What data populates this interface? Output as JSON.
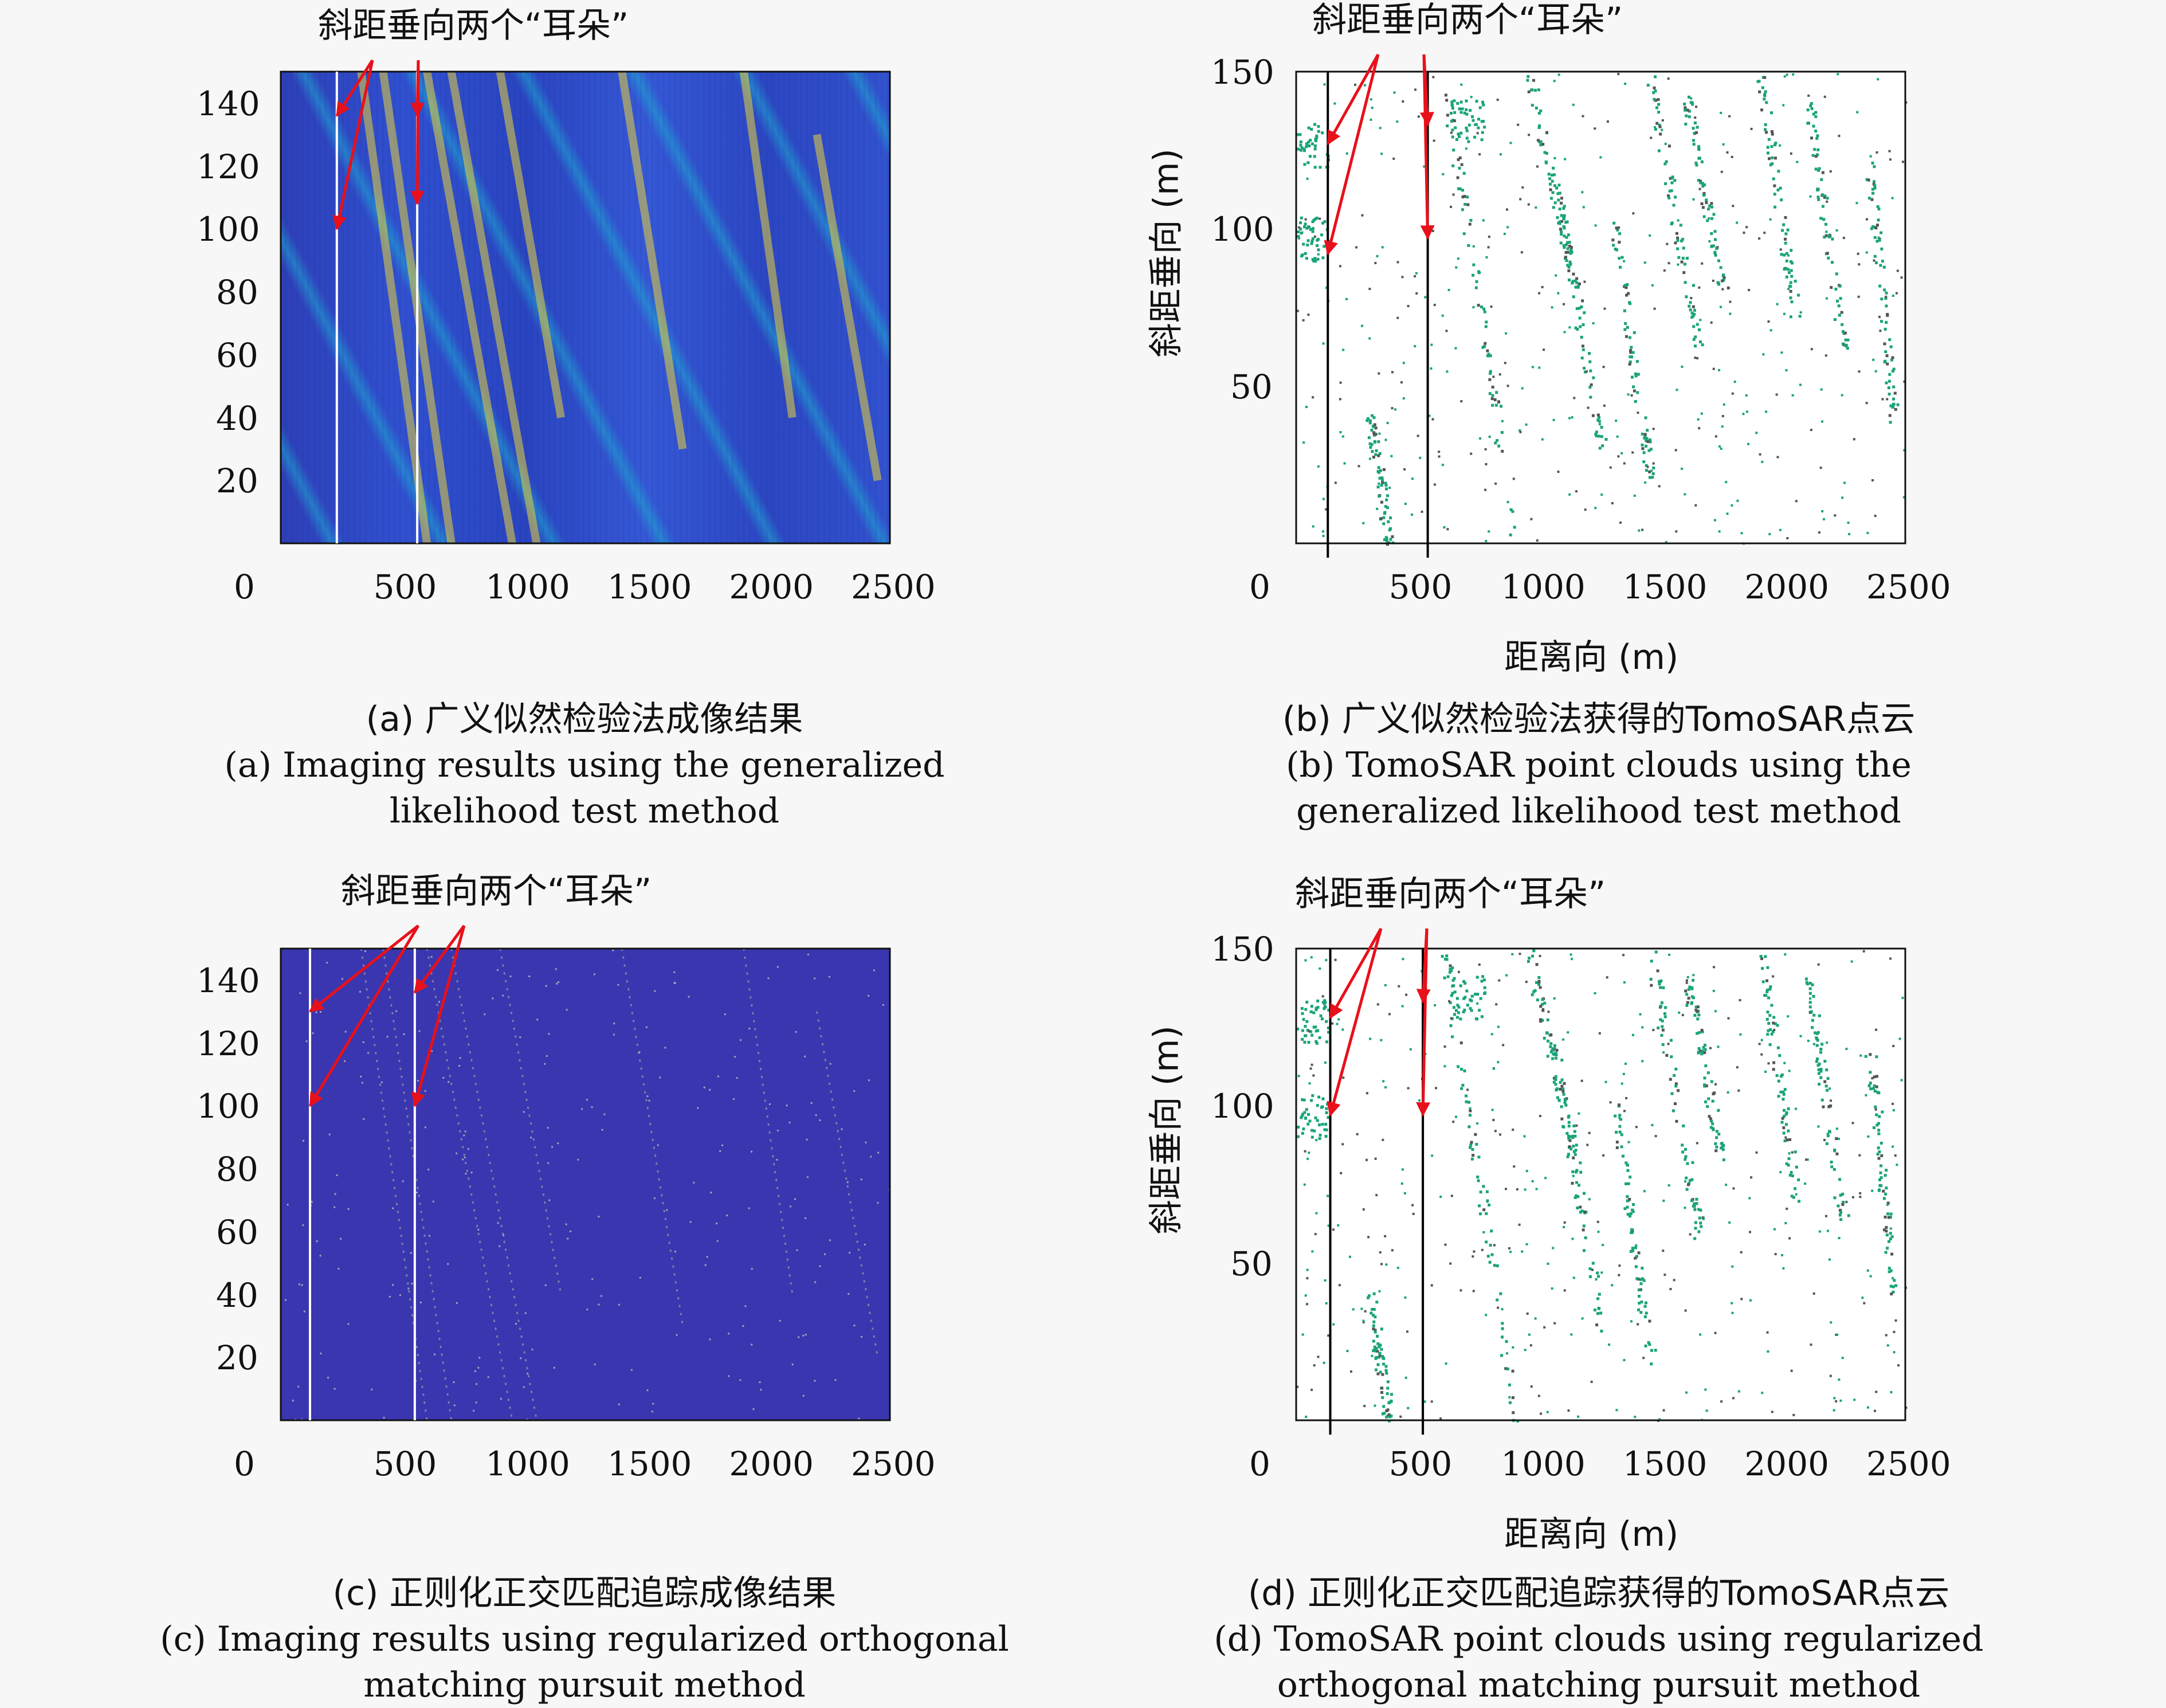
{
  "colors": {
    "arrow": "#e8101a",
    "point_green": "#1aa37a",
    "point_gray": "#555555",
    "heat_low": "#3a36b0",
    "heat_high": "#e8d23a",
    "guide_white": "#ffffff",
    "guide_black": "#000000"
  },
  "annotation_text": "斜距垂向两个“耳朵”",
  "panels": {
    "a": {
      "caption_cn": "(a) 广义似然检验法成像结果",
      "caption_en_1": "(a) Imaging results using the generalized",
      "caption_en_2": "likelihood test method"
    },
    "b": {
      "caption_cn": "(b) 广义似然检验法获得的TomoSAR点云",
      "caption_en_1": "(b) TomoSAR point clouds using the",
      "caption_en_2": "generalized likelihood test method",
      "xlabel": "距离向 (m)",
      "ylabel": "斜距垂向 (m)"
    },
    "c": {
      "caption_cn": "(c) 正则化正交匹配追踪成像结果",
      "caption_en_1": "(c) Imaging results using regularized orthogonal",
      "caption_en_2": "matching pursuit method"
    },
    "d": {
      "caption_cn": "(d) 正则化正交匹配追踪获得的TomoSAR点云",
      "caption_en_1": "(d) TomoSAR point clouds using regularized",
      "caption_en_2": "orthogonal matching pursuit method",
      "xlabel": "距离向 (m)",
      "ylabel": "斜距垂向 (m)"
    }
  },
  "chart_data": [
    {
      "panel": "a",
      "type": "heatmap",
      "xticks": [
        "0",
        "500",
        "1000",
        "1500",
        "2000",
        "2500"
      ],
      "yticks": [
        "20",
        "40",
        "60",
        "80",
        "100",
        "120",
        "140"
      ],
      "xlim": [
        0,
        2500
      ],
      "ylim": [
        0,
        150
      ],
      "guide_lines_x": [
        230,
        560
      ],
      "arrow_targets": [
        [
          230,
          136
        ],
        [
          230,
          100
        ],
        [
          560,
          136
        ],
        [
          560,
          108
        ]
      ],
      "colormap": "parula"
    },
    {
      "panel": "b",
      "type": "scatter",
      "xticks": [
        "0",
        "500",
        "1000",
        "1500",
        "2000",
        "2500"
      ],
      "yticks": [
        "50",
        "100",
        "150"
      ],
      "xlim": [
        0,
        2500
      ],
      "ylim": [
        0,
        150
      ],
      "guide_lines_x": [
        130,
        540
      ],
      "arrow_targets": [
        [
          130,
          127
        ],
        [
          130,
          92
        ],
        [
          540,
          133
        ],
        [
          540,
          97
        ]
      ]
    },
    {
      "panel": "c",
      "type": "heatmap",
      "xticks": [
        "0",
        "500",
        "1000",
        "1500",
        "2000",
        "2500"
      ],
      "yticks": [
        "20",
        "40",
        "60",
        "80",
        "100",
        "120",
        "140"
      ],
      "xlim": [
        0,
        2500
      ],
      "ylim": [
        0,
        150
      ],
      "guide_lines_x": [
        120,
        550
      ],
      "arrow_targets": [
        [
          120,
          130
        ],
        [
          120,
          100
        ],
        [
          550,
          136
        ],
        [
          550,
          100
        ]
      ],
      "colormap": "parula"
    },
    {
      "panel": "d",
      "type": "scatter",
      "xticks": [
        "0",
        "500",
        "1000",
        "1500",
        "2000",
        "2500"
      ],
      "yticks": [
        "50",
        "100",
        "150"
      ],
      "xlim": [
        0,
        2500
      ],
      "ylim": [
        0,
        150
      ],
      "guide_lines_x": [
        140,
        520
      ],
      "arrow_targets": [
        [
          140,
          128
        ],
        [
          140,
          97
        ],
        [
          520,
          133
        ],
        [
          520,
          97
        ]
      ]
    }
  ]
}
